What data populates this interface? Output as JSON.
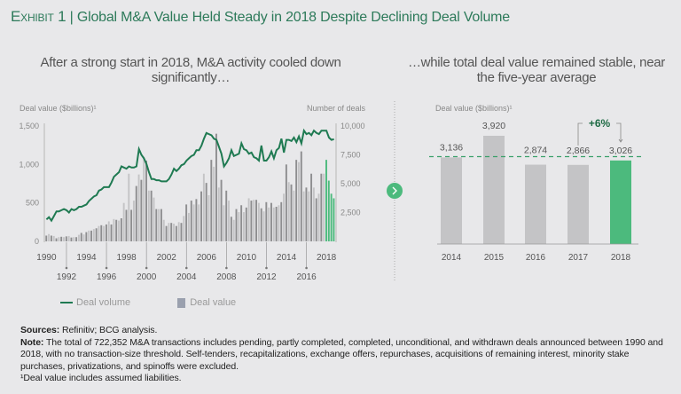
{
  "header": {
    "exhibit": "Exhibit 1",
    "separator": "|",
    "title": "Global M&A Value Held Steady in 2018 Despite Declining Deal Volume"
  },
  "left_panel": {
    "subtitle": "After a strong start in 2018, M&A activity cooled down significantly…"
  },
  "right_panel": {
    "subtitle": "…while total deal value remained stable, near the five-year average"
  },
  "colors": {
    "green_line": "#1f7a52",
    "green_bar": "#4cba7d",
    "bar_dark": "#8e8e90",
    "bar_light": "#c4c4c6",
    "title": "#2d7a5a"
  },
  "chart_data": [
    {
      "type": "bar+line",
      "period": "quarterly, 1990–2018",
      "ylabel_left": "Deal value ($billions)¹",
      "ylabel_right": "Number of deals",
      "ylim_left": [
        0,
        1500
      ],
      "ylim_right": [
        0,
        10000
      ],
      "yticks_left": [
        "0",
        "500",
        "1,000",
        "1,500"
      ],
      "yticks_right": [
        "2,500",
        "5,000",
        "7,500",
        "10,000"
      ],
      "xticks_upper": [
        "1990",
        "1994",
        "1998",
        "2002",
        "2006",
        "2010",
        "2014",
        "2018"
      ],
      "xticks_lower": [
        "1992",
        "1996",
        "2000",
        "2004",
        "2008",
        "2012",
        "2016"
      ],
      "legend": [
        "Deal volume",
        "Deal value"
      ],
      "series": [
        {
          "name": "Deal value",
          "kind": "bar",
          "axis": "left",
          "highlight_last": 4,
          "values": [
            75,
            95,
            75,
            70,
            40,
            55,
            60,
            55,
            65,
            70,
            50,
            55,
            55,
            85,
            110,
            90,
            120,
            140,
            140,
            160,
            170,
            200,
            210,
            200,
            220,
            260,
            220,
            290,
            280,
            270,
            300,
            500,
            410,
            880,
            410,
            530,
            720,
            870,
            800,
            1100,
            1050,
            660,
            660,
            570,
            420,
            420,
            420,
            280,
            200,
            240,
            240,
            230,
            200,
            250,
            240,
            330,
            480,
            370,
            530,
            480,
            550,
            480,
            650,
            880,
            760,
            600,
            1060,
            970,
            1400,
            700,
            800,
            470,
            660,
            530,
            320,
            280,
            420,
            380,
            470,
            380,
            440,
            560,
            530,
            540,
            540,
            500,
            430,
            390,
            510,
            440,
            500,
            440,
            450,
            470,
            510,
            620,
            1000,
            770,
            740,
            660,
            1060,
            1030,
            1170,
            650,
            700,
            650,
            880,
            700,
            560,
            620,
            880,
            880,
            1060,
            790,
            620,
            560
          ]
        },
        {
          "name": "Deal volume",
          "kind": "line",
          "axis": "right",
          "values": [
            1900,
            2100,
            1800,
            2200,
            2600,
            2600,
            2700,
            2800,
            2700,
            2500,
            2800,
            2700,
            2800,
            3000,
            3000,
            3100,
            3200,
            3500,
            3700,
            3900,
            4000,
            4400,
            4500,
            4700,
            4700,
            4700,
            5100,
            5600,
            5800,
            6000,
            6500,
            6400,
            6300,
            6500,
            6400,
            6400,
            6500,
            8000,
            7500,
            7200,
            6700,
            6000,
            5400,
            5400,
            5300,
            5300,
            5200,
            5200,
            5200,
            5400,
            5800,
            6300,
            6100,
            6300,
            6600,
            6700,
            7000,
            7200,
            7400,
            7500,
            7900,
            7900,
            8300,
            8900,
            9400,
            9300,
            9200,
            8900,
            8800,
            8200,
            7600,
            6500,
            6800,
            7200,
            7900,
            7400,
            7500,
            7600,
            8500,
            8000,
            7900,
            7600,
            7700,
            7300,
            7200,
            7000,
            8300,
            7000,
            7000,
            7300,
            7800,
            7200,
            7900,
            8100,
            8900,
            7700,
            8800,
            8800,
            8700,
            9000,
            8600,
            9100,
            8500,
            9600,
            9300,
            9400,
            9200,
            9600,
            9400,
            9300,
            9600,
            9600,
            9600,
            9000,
            8800,
            8850
          ]
        }
      ]
    },
    {
      "type": "bar",
      "ylabel": "Deal value ($billions)¹",
      "categories": [
        "2014",
        "2015",
        "2016",
        "2017",
        "2018"
      ],
      "values": [
        3136,
        3920,
        2874,
        2866,
        3026
      ],
      "data_labels": [
        "3,136",
        "3,920",
        "2,874",
        "2,866",
        "3,026"
      ],
      "reference_line": "five-year average",
      "highlight": "2018",
      "annotation": "+6%"
    }
  ],
  "footer": {
    "sources_label": "Sources:",
    "sources": "Refinitiv; BCG analysis.",
    "note_label": "Note:",
    "note": "The total of 722,352 M&A transactions includes pending, partly completed, completed, unconditional, and withdrawn deals announced between 1990 and 2018, with no transaction-size threshold. Self-tenders, recapitalizations, exchange offers, repurchases, acquisitions of remaining interest, minority stake purchases, privatizations, and spinoffs were excluded.",
    "footnote": "¹Deal value includes assumed liabilities."
  }
}
